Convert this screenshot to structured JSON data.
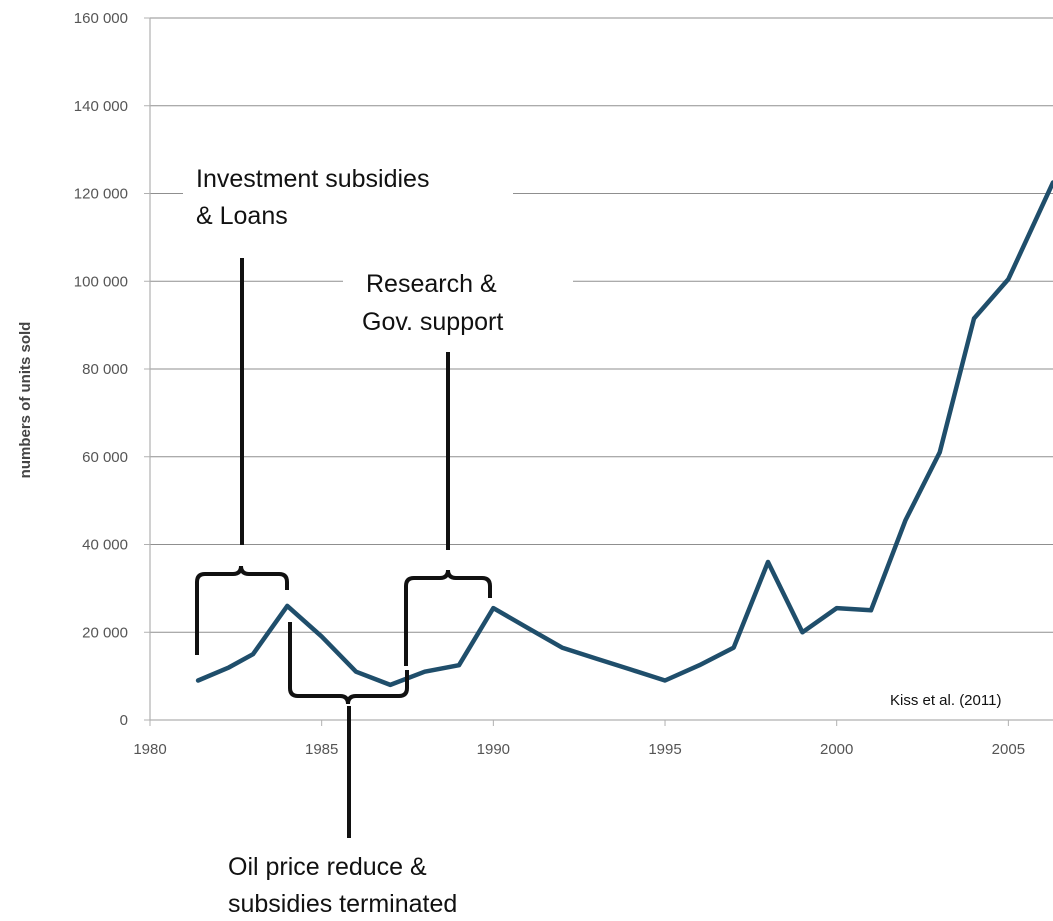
{
  "chart_data": {
    "type": "line",
    "ylabel": "numbers of units sold",
    "xlim": [
      1980,
      2006.3
    ],
    "ylim": [
      0,
      160000
    ],
    "grid": true,
    "x_ticks": [
      "1980",
      "1985",
      "1990",
      "1995",
      "2000",
      "2005"
    ],
    "y_ticks": [
      "0",
      "20 000",
      "40 000",
      "60 000",
      "80 000",
      "100 000",
      "120 000",
      "140 000",
      "160 000"
    ],
    "line_color": "#1f4e6b",
    "series": [
      {
        "x": [
          1981.4,
          1982.3,
          1983,
          1984,
          1985,
          1986,
          1987,
          1988,
          1989,
          1990,
          1991,
          1992,
          1993,
          1994,
          1995,
          1996,
          1997,
          1998,
          1999,
          2000,
          2001,
          2002,
          2003,
          2004,
          2005,
          2006.3
        ],
        "values": [
          9000,
          12000,
          15000,
          26000,
          19000,
          11000,
          8000,
          11000,
          12500,
          25500,
          21000,
          16500,
          14000,
          11500,
          9000,
          12500,
          16500,
          36000,
          20000,
          25500,
          25000,
          45500,
          61000,
          91500,
          100500,
          122500
        ]
      }
    ],
    "annotations": [
      {
        "id": "investment",
        "lines": [
          "Investment subsidies",
          "& Loans"
        ]
      },
      {
        "id": "research",
        "lines": [
          "Research &",
          "Gov. support"
        ]
      },
      {
        "id": "oil",
        "lines": [
          "Oil price reduce &",
          "subsidies terminated"
        ]
      }
    ],
    "credit": "Kiss et al. (2011)"
  }
}
